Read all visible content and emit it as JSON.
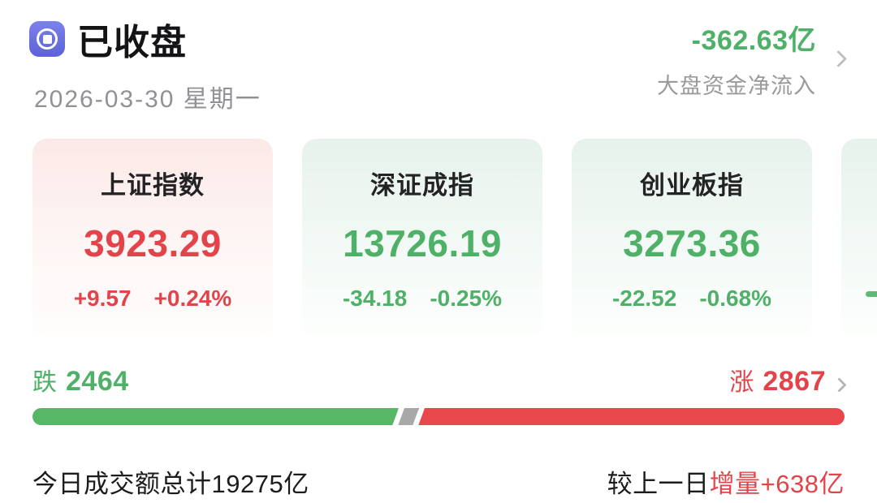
{
  "header": {
    "status_label": "已收盘",
    "date": "2026-03-30 星期一",
    "net_flow": {
      "value": "-362.63亿",
      "label": "大盘资金净流入"
    }
  },
  "indices": [
    {
      "name": "上证指数",
      "value": "3923.29",
      "change": "+9.57",
      "change_pct": "+0.24%",
      "direction": "up"
    },
    {
      "name": "深证成指",
      "value": "13726.19",
      "change": "-34.18",
      "change_pct": "-0.25%",
      "direction": "down"
    },
    {
      "name": "创业板指",
      "value": "3273.36",
      "change": "-22.52",
      "change_pct": "-0.68%",
      "direction": "down"
    },
    {
      "name": "",
      "value": "",
      "change": "",
      "change_pct": "",
      "direction": "down"
    }
  ],
  "breadth": {
    "down_label": "跌",
    "down_count": "2464",
    "up_label": "涨",
    "up_count": "2867",
    "bar": {
      "down_pct": 45,
      "flat_pct": 2.5,
      "up_pct": 52.5
    }
  },
  "summary": {
    "turnover_text": "今日成交额总计19275亿",
    "vs_prev_prefix": "较上一日",
    "vs_prev_highlight": "增量+638亿"
  },
  "colors": {
    "up_red": "#e2444a",
    "down_green": "#4fb168",
    "bar_red": "#e8484b",
    "bar_green": "#57b766",
    "bar_flat": "#a8a8a8",
    "icon_indigo": "#6a6fdf",
    "muted_gray": "#9a9a9b",
    "card_up_bg": "#fbe9e7",
    "card_down_bg": "#e7f2ec"
  }
}
